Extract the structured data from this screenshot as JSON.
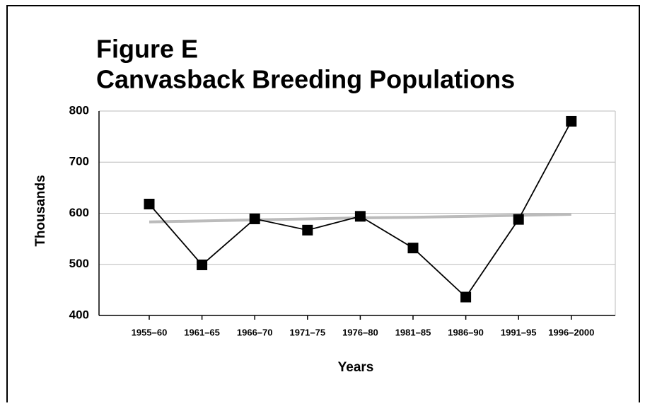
{
  "chart_data": {
    "type": "line",
    "title": "Figure E",
    "subtitle": "Canvasback Breeding Populations",
    "y_label": "Thousands",
    "x_label": "Years",
    "categories": [
      "1955–60",
      "1961–65",
      "1966–70",
      "1971–75",
      "1976–80",
      "1981–85",
      "1986–90",
      "1991–95",
      "1996–2000"
    ],
    "series": [
      {
        "color": "#000000",
        "marker": "square",
        "values": [
          618,
          499,
          589,
          567,
          594,
          532,
          436,
          588,
          780
        ]
      },
      {
        "color": "#bbbbbb",
        "values": [
          583,
          585,
          587,
          589,
          591,
          592,
          594,
          596,
          598
        ]
      }
    ],
    "ylim": [
      400,
      800
    ],
    "yticks": [
      400,
      500,
      600,
      700,
      800
    ],
    "grid": true
  }
}
